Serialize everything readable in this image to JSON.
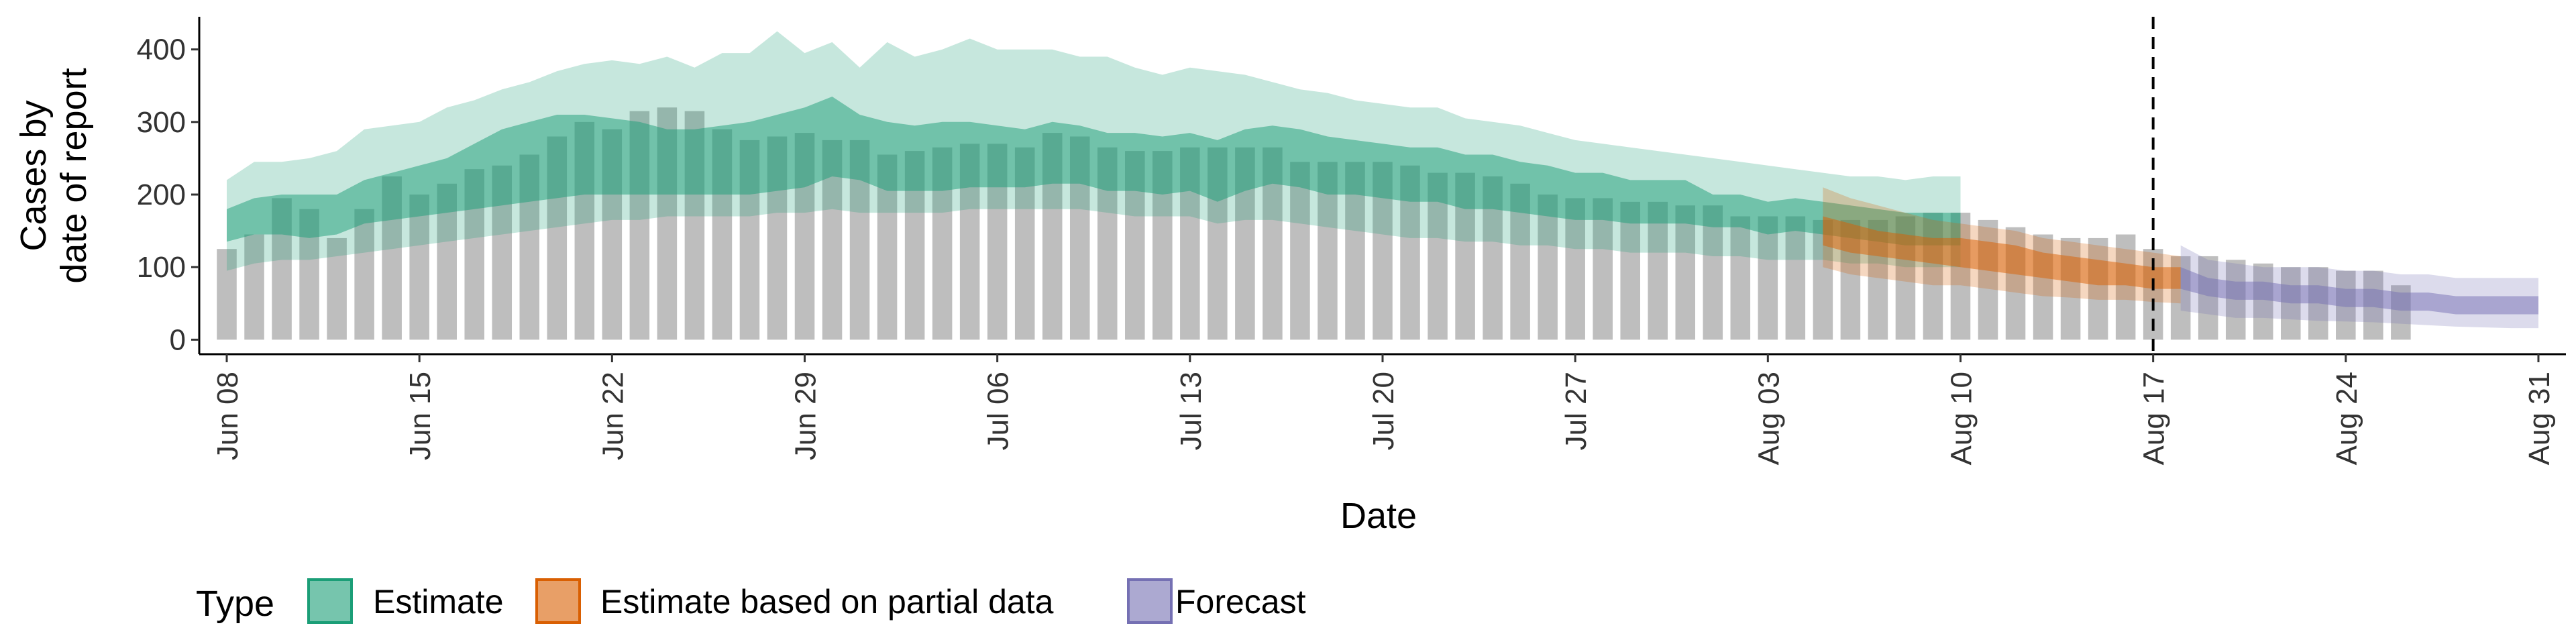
{
  "chart_data": {
    "type": "area",
    "title": "",
    "xlabel": "Date",
    "ylabel_lines": [
      "Cases by",
      "date of report"
    ],
    "x_start": "2020-06-08",
    "x_range": [
      "2020-06-07",
      "2020-09-01"
    ],
    "ylim": [
      -20,
      445
    ],
    "y_ticks": [
      0,
      100,
      200,
      300,
      400
    ],
    "x_tick_dates": [
      "2020-06-08",
      "2020-06-15",
      "2020-06-22",
      "2020-06-29",
      "2020-07-06",
      "2020-07-13",
      "2020-07-20",
      "2020-07-27",
      "2020-08-03",
      "2020-08-10",
      "2020-08-17",
      "2020-08-24",
      "2020-08-31"
    ],
    "x_tick_labels": [
      "Jun 08",
      "Jun 15",
      "Jun 22",
      "Jun 29",
      "Jul 06",
      "Jul 13",
      "Jul 20",
      "Jul 27",
      "Aug 03",
      "Aug 10",
      "Aug 17",
      "Aug 24",
      "Aug 31"
    ],
    "forecast_line_date": "2020-08-17",
    "grid": false,
    "legend": {
      "title": "Type",
      "placement": "bottom",
      "entries": [
        {
          "name": "Estimate",
          "color": "#1b9e77"
        },
        {
          "name": "Estimate based on partial data",
          "color": "#d95f02"
        },
        {
          "name": "Forecast",
          "color": "#7570b3"
        }
      ]
    },
    "reported_cases": [
      125,
      145,
      195,
      180,
      140,
      180,
      225,
      200,
      215,
      235,
      240,
      255,
      280,
      300,
      290,
      315,
      320,
      315,
      290,
      275,
      280,
      285,
      275,
      275,
      255,
      260,
      265,
      270,
      270,
      265,
      285,
      280,
      265,
      260,
      260,
      265,
      265,
      265,
      265,
      245,
      245,
      245,
      245,
      240,
      230,
      230,
      225,
      215,
      200,
      195,
      195,
      190,
      190,
      185,
      185,
      170,
      170,
      170,
      165,
      165,
      165,
      170,
      175,
      175,
      165,
      155,
      145,
      140,
      140,
      145,
      125,
      115,
      115,
      110,
      105,
      100,
      100,
      95,
      95,
      75
    ],
    "series": [
      {
        "name": "Estimate",
        "start": "2020-06-08",
        "inner_upper": [
          180,
          195,
          200,
          200,
          200,
          220,
          230,
          240,
          250,
          270,
          290,
          300,
          310,
          310,
          305,
          300,
          290,
          290,
          295,
          300,
          310,
          320,
          335,
          310,
          300,
          295,
          300,
          300,
          295,
          290,
          300,
          295,
          285,
          285,
          280,
          285,
          275,
          290,
          295,
          290,
          280,
          275,
          270,
          265,
          265,
          255,
          255,
          245,
          240,
          230,
          230,
          220,
          220,
          220,
          200,
          200,
          190,
          195,
          190,
          185,
          180,
          175,
          175,
          175
        ],
        "inner_lower": [
          135,
          145,
          145,
          140,
          145,
          160,
          165,
          170,
          175,
          180,
          185,
          190,
          195,
          200,
          200,
          200,
          200,
          200,
          200,
          200,
          205,
          210,
          225,
          220,
          205,
          205,
          205,
          210,
          210,
          210,
          215,
          215,
          205,
          205,
          200,
          205,
          190,
          205,
          215,
          210,
          200,
          200,
          195,
          190,
          190,
          180,
          180,
          175,
          170,
          165,
          165,
          160,
          160,
          160,
          155,
          155,
          145,
          150,
          145,
          140,
          135,
          130,
          130,
          130
        ],
        "outer_upper": [
          220,
          245,
          245,
          250,
          260,
          290,
          295,
          300,
          320,
          330,
          345,
          355,
          370,
          380,
          385,
          380,
          390,
          375,
          395,
          395,
          425,
          395,
          410,
          375,
          410,
          390,
          400,
          415,
          400,
          400,
          400,
          390,
          390,
          375,
          365,
          375,
          370,
          365,
          355,
          345,
          340,
          330,
          325,
          320,
          320,
          305,
          300,
          295,
          285,
          275,
          270,
          265,
          260,
          255,
          250,
          245,
          240,
          235,
          230,
          225,
          225,
          220,
          225,
          225
        ],
        "outer_lower": [
          95,
          105,
          110,
          110,
          115,
          120,
          125,
          130,
          135,
          140,
          145,
          150,
          155,
          160,
          165,
          165,
          170,
          170,
          170,
          170,
          175,
          175,
          180,
          175,
          175,
          175,
          175,
          180,
          180,
          180,
          180,
          180,
          175,
          170,
          170,
          170,
          160,
          165,
          165,
          160,
          155,
          150,
          145,
          140,
          140,
          135,
          135,
          130,
          130,
          125,
          125,
          120,
          120,
          120,
          115,
          115,
          110,
          110,
          110,
          105,
          105,
          100,
          100,
          100
        ]
      },
      {
        "name": "Estimate based on partial data",
        "start": "2020-08-05",
        "inner_upper": [
          170,
          160,
          150,
          145,
          140,
          140,
          135,
          130,
          120,
          115,
          110,
          105,
          100,
          100
        ],
        "inner_lower": [
          130,
          120,
          115,
          110,
          105,
          100,
          95,
          90,
          85,
          80,
          75,
          75,
          70,
          70
        ],
        "outer_upper": [
          210,
          195,
          185,
          175,
          165,
          160,
          155,
          150,
          140,
          135,
          130,
          125,
          120,
          115
        ],
        "outer_lower": [
          100,
          90,
          85,
          80,
          75,
          75,
          70,
          65,
          60,
          58,
          55,
          55,
          52,
          50
        ]
      },
      {
        "name": "Forecast",
        "start": "2020-08-18",
        "inner_upper": [
          100,
          85,
          80,
          80,
          75,
          75,
          70,
          70,
          65,
          65,
          60,
          60,
          60,
          60
        ],
        "inner_lower": [
          70,
          60,
          55,
          55,
          50,
          50,
          45,
          45,
          40,
          40,
          35,
          35,
          35,
          35
        ],
        "outer_upper": [
          130,
          110,
          105,
          100,
          100,
          100,
          95,
          95,
          90,
          90,
          85,
          85,
          85,
          85
        ],
        "outer_lower": [
          40,
          35,
          30,
          30,
          28,
          26,
          25,
          24,
          22,
          20,
          18,
          17,
          16,
          16
        ]
      }
    ]
  }
}
